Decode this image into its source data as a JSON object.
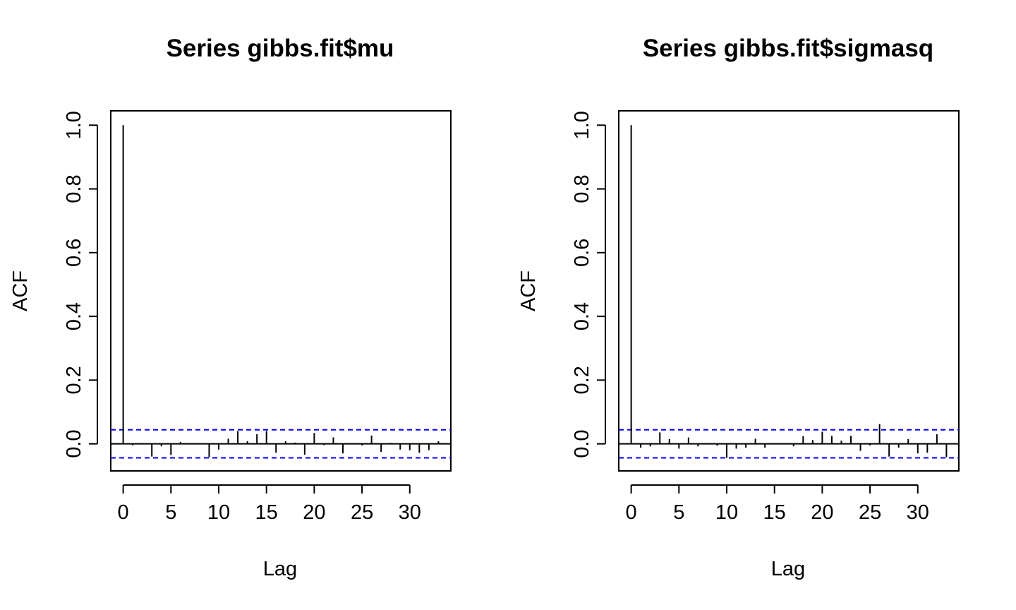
{
  "chart_data": [
    {
      "type": "bar",
      "title": "Series  gibbs.fit$mu",
      "xlabel": "Lag",
      "ylabel": "ACF",
      "xlim": [
        -1.3,
        34.3
      ],
      "ylim": [
        -0.085,
        1.045
      ],
      "x_ticks": [
        0,
        5,
        10,
        15,
        20,
        25,
        30
      ],
      "y_ticks": [
        0.0,
        0.2,
        0.4,
        0.6,
        0.8,
        1.0
      ],
      "y_tick_labels": [
        "0.0",
        "0.2",
        "0.4",
        "0.6",
        "0.8",
        "1.0"
      ],
      "confidence_bound": 0.044,
      "grid": false,
      "lags": [
        0,
        1,
        2,
        3,
        4,
        5,
        6,
        7,
        8,
        9,
        10,
        11,
        12,
        13,
        14,
        15,
        16,
        17,
        18,
        19,
        20,
        21,
        22,
        23,
        24,
        25,
        26,
        27,
        28,
        29,
        30,
        31,
        32,
        33
      ],
      "values": [
        1.0,
        -0.005,
        0.0,
        -0.04,
        -0.008,
        -0.035,
        0.006,
        0.0,
        0.0,
        -0.042,
        -0.018,
        0.016,
        0.04,
        0.008,
        0.03,
        0.04,
        -0.028,
        0.008,
        0.004,
        -0.034,
        0.034,
        -0.004,
        0.02,
        -0.03,
        0.0,
        -0.005,
        0.026,
        -0.025,
        0.003,
        -0.018,
        -0.02,
        -0.028,
        -0.02,
        0.008
      ],
      "colors": {
        "bars": "#000000",
        "ci": "#0000ff"
      }
    },
    {
      "type": "bar",
      "title": "Series  gibbs.fit$sigmasq",
      "xlabel": "Lag",
      "ylabel": "ACF",
      "xlim": [
        -1.3,
        34.3
      ],
      "ylim": [
        -0.085,
        1.045
      ],
      "x_ticks": [
        0,
        5,
        10,
        15,
        20,
        25,
        30
      ],
      "y_ticks": [
        0.0,
        0.2,
        0.4,
        0.6,
        0.8,
        1.0
      ],
      "y_tick_labels": [
        "0.0",
        "0.2",
        "0.4",
        "0.6",
        "0.8",
        "1.0"
      ],
      "confidence_bound": 0.044,
      "grid": false,
      "lags": [
        0,
        1,
        2,
        3,
        4,
        5,
        6,
        7,
        8,
        9,
        10,
        11,
        12,
        13,
        14,
        15,
        16,
        17,
        18,
        19,
        20,
        21,
        22,
        23,
        24,
        25,
        26,
        27,
        28,
        29,
        30,
        31,
        32,
        33
      ],
      "values": [
        1.0,
        -0.012,
        -0.008,
        0.036,
        0.015,
        -0.015,
        0.02,
        -0.008,
        0.0,
        -0.006,
        -0.044,
        -0.015,
        -0.012,
        0.016,
        -0.012,
        0.0,
        -0.002,
        -0.008,
        0.024,
        0.012,
        0.038,
        0.025,
        0.01,
        0.025,
        -0.022,
        -0.005,
        0.062,
        -0.04,
        -0.012,
        0.015,
        -0.03,
        -0.028,
        0.03,
        -0.042
      ],
      "colors": {
        "bars": "#000000",
        "ci": "#0000ff"
      }
    }
  ]
}
